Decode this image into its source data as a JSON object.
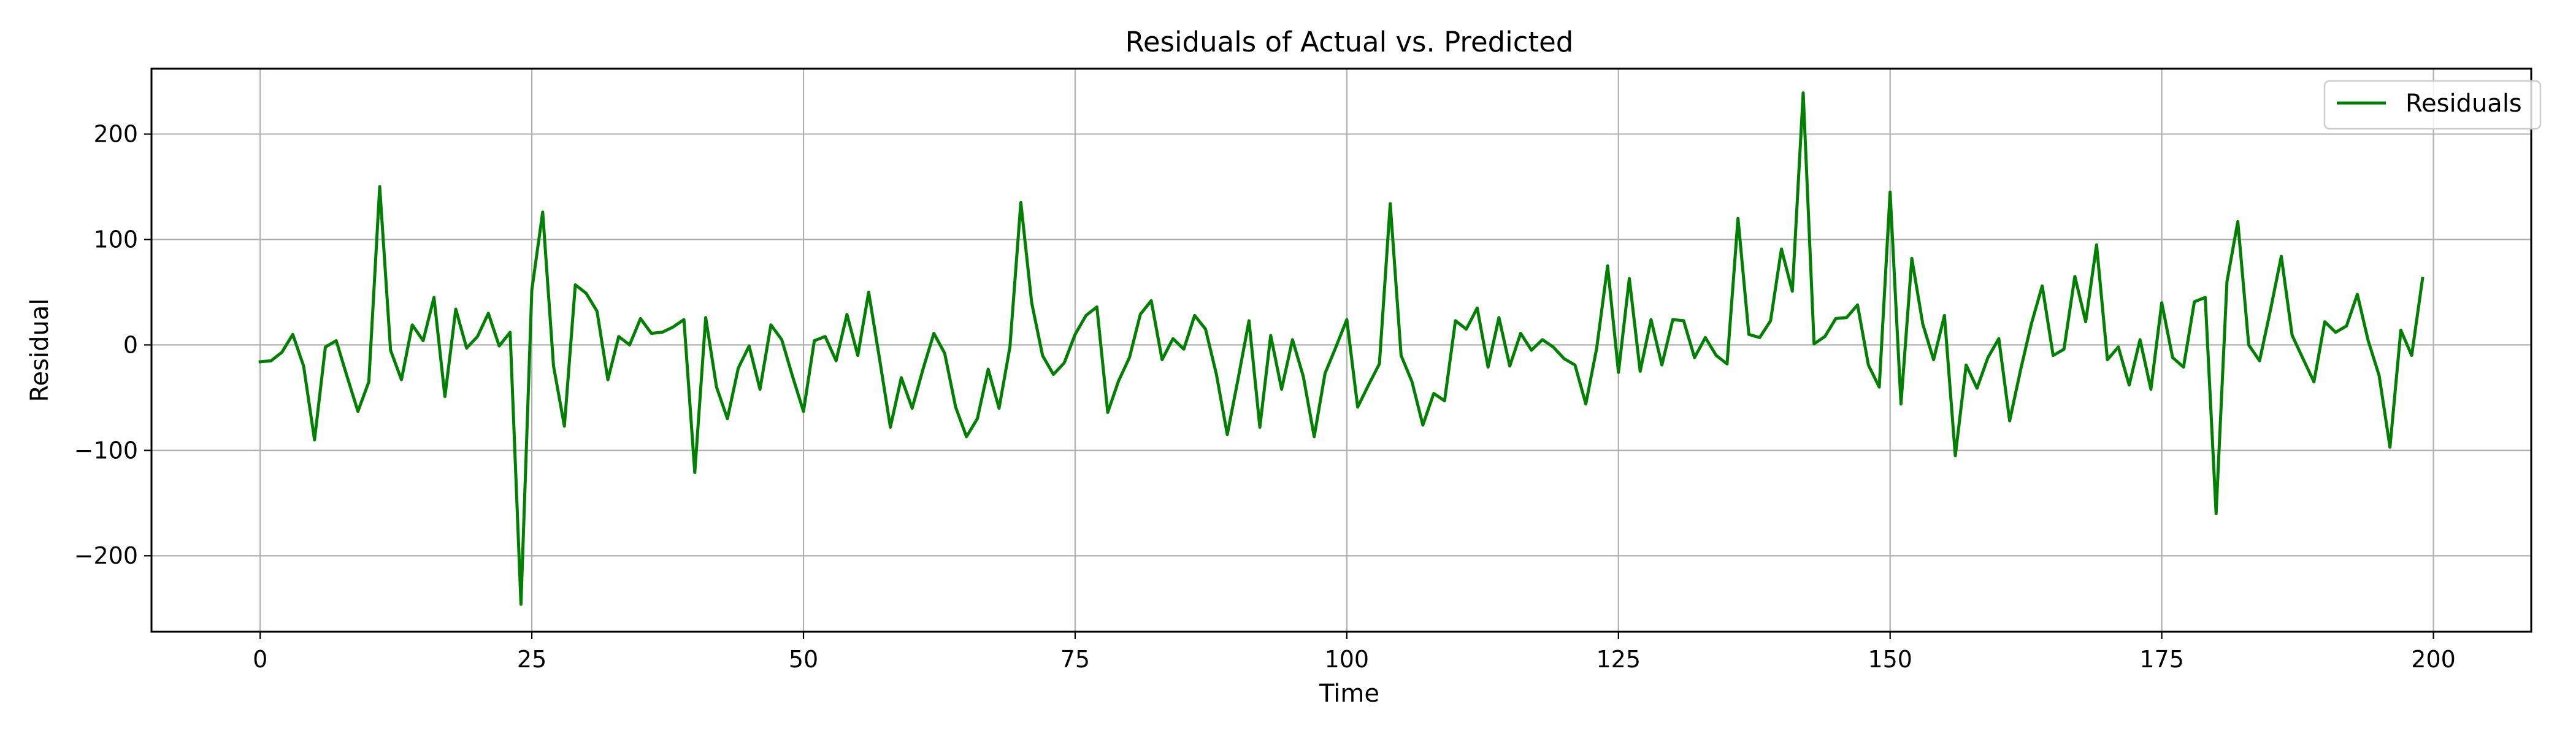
{
  "chart_data": {
    "type": "line",
    "title": "Residuals of Actual vs. Predicted",
    "xlabel": "Time",
    "ylabel": "Residual",
    "xlim": [
      -10,
      209
    ],
    "ylim": [
      -272,
      262
    ],
    "xticks": [
      0,
      25,
      50,
      75,
      100,
      125,
      150,
      175,
      200
    ],
    "yticks": [
      -200,
      -100,
      0,
      100,
      200
    ],
    "xtick_labels": [
      "0",
      "25",
      "50",
      "75",
      "100",
      "125",
      "150",
      "175",
      "200"
    ],
    "ytick_labels": [
      "−200",
      "−100",
      "0",
      "100",
      "200"
    ],
    "grid": true,
    "legend": {
      "position": "top-right",
      "entries": [
        "Residuals"
      ]
    },
    "series": [
      {
        "name": "Residuals",
        "color": "#008000",
        "x_start": 0,
        "x_step": 1,
        "values": [
          -16,
          -15,
          -7,
          10,
          -20,
          -90,
          -2,
          4,
          -30,
          -63,
          -35,
          150,
          -5,
          -33,
          19,
          4,
          45,
          -49,
          34,
          -3,
          8,
          30,
          -1,
          12,
          -246,
          52,
          126,
          -20,
          -77,
          57,
          49,
          32,
          -33,
          8,
          0,
          25,
          11,
          12,
          17,
          24,
          -121,
          26,
          -40,
          -70,
          -22,
          -1,
          -42,
          19,
          5,
          -30,
          -63,
          4,
          8,
          -15,
          29,
          -10,
          50,
          -13,
          -78,
          -31,
          -60,
          -23,
          11,
          -8,
          -59,
          -87,
          -70,
          -23,
          -60,
          -2,
          135,
          40,
          -10,
          -28,
          -17,
          10,
          28,
          36,
          -64,
          -34,
          -12,
          29,
          42,
          -14,
          6,
          -4,
          28,
          15,
          -28,
          -85,
          -32,
          23,
          -78,
          9,
          -42,
          5,
          -30,
          -87,
          -27,
          -2,
          24,
          -59,
          -38,
          -18,
          134,
          -10,
          -35,
          -76,
          -46,
          -53,
          23,
          15,
          35,
          -21,
          26,
          -20,
          11,
          -5,
          5,
          -2,
          -13,
          -19,
          -56,
          -3,
          75,
          -26,
          63,
          -25,
          24,
          -19,
          24,
          23,
          -12,
          7,
          -10,
          -18,
          120,
          10,
          7,
          23,
          91,
          51,
          239,
          1,
          8,
          25,
          26,
          38,
          -19,
          -40,
          145,
          -56,
          82,
          20,
          -14,
          28,
          -105,
          -19,
          -41,
          -12,
          6,
          -72,
          -24,
          20,
          56,
          -10,
          -4,
          65,
          22,
          95,
          -14,
          -2,
          -38,
          5,
          -42,
          40,
          -12,
          -21,
          41,
          45,
          -160,
          60,
          117,
          0,
          -15,
          33,
          84,
          9,
          -13,
          -35,
          22,
          12,
          18,
          48,
          4,
          -29,
          -97,
          14,
          -10,
          63
        ]
      }
    ]
  }
}
